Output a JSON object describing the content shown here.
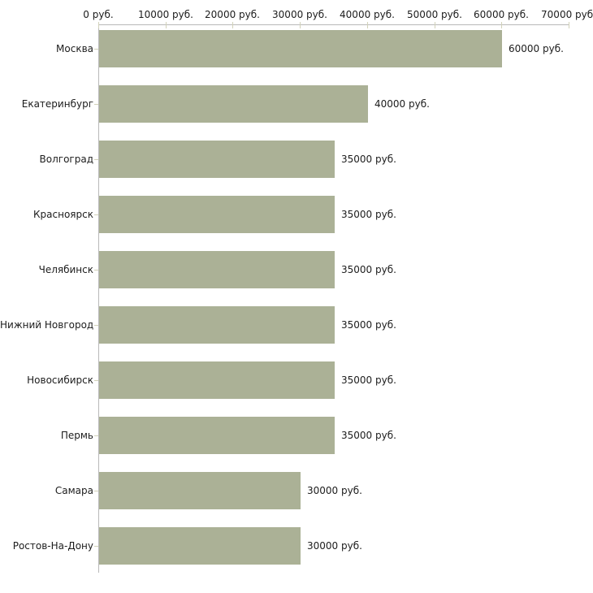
{
  "chart_data": {
    "type": "bar",
    "orientation": "horizontal",
    "title": "",
    "xlabel": "",
    "ylabel": "",
    "unit": "руб.",
    "grid": false,
    "legend": null,
    "xlim": [
      0,
      70000
    ],
    "x_tick_step": 10000,
    "x_tick_labels": [
      "0 руб.",
      "10000 руб.",
      "20000 руб.",
      "30000 руб.",
      "40000 руб.",
      "50000 руб.",
      "60000 руб.",
      "70000 руб."
    ],
    "categories": [
      "Москва",
      "Екатеринбург",
      "Волгоград",
      "Красноярск",
      "Челябинск",
      "Нижний Новгород",
      "Новосибирск",
      "Пермь",
      "Самара",
      "Ростов-На-Дону"
    ],
    "values": [
      60000,
      40000,
      35000,
      35000,
      35000,
      35000,
      35000,
      35000,
      30000,
      30000
    ],
    "value_labels": [
      "60000 руб.",
      "40000 руб.",
      "35000 руб.",
      "35000 руб.",
      "35000 руб.",
      "35000 руб.",
      "35000 руб.",
      "35000 руб.",
      "30000 руб.",
      "30000 руб."
    ],
    "colors": {
      "bar": "#abb196",
      "axis_line": "#b9b9b9",
      "tick_mark": "#d2d2ba",
      "text": "#1c1c1c",
      "background": "#ffffff"
    }
  }
}
